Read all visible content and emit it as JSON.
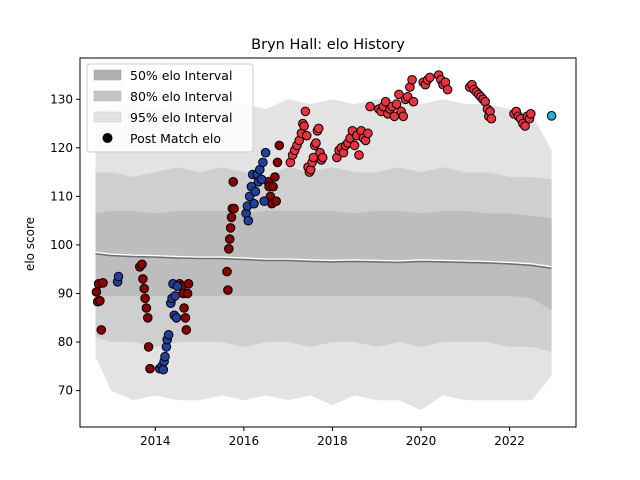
{
  "chart_data": {
    "type": "scatter",
    "title": "Bryn Hall: elo History",
    "xlabel": "",
    "ylabel": "elo score",
    "xlim": [
      2012.3,
      2023.5
    ],
    "ylim": [
      62.5,
      138.5
    ],
    "x_ticks": [
      2014,
      2016,
      2018,
      2020,
      2022
    ],
    "y_ticks": [
      70,
      80,
      90,
      100,
      110,
      120,
      130
    ],
    "legend": {
      "placement": "top-left",
      "entries": [
        "50% elo Interval",
        "80% elo Interval",
        "95% elo Interval",
        "Post Match elo"
      ]
    },
    "bands": {
      "x": [
        2012.65,
        2013.0,
        2013.5,
        2014.0,
        2014.5,
        2015.0,
        2015.5,
        2016.0,
        2016.5,
        2017.0,
        2017.5,
        2018.0,
        2018.5,
        2019.0,
        2019.5,
        2020.0,
        2020.5,
        2021.0,
        2021.5,
        2022.0,
        2022.5,
        2022.95
      ],
      "i95_high": [
        128,
        129,
        129,
        128,
        129,
        129,
        130,
        129,
        128,
        130,
        129,
        130,
        129,
        130,
        130,
        129,
        130,
        129,
        129,
        128,
        127,
        119.5
      ],
      "i95_low": [
        77,
        70,
        68,
        69,
        68,
        68,
        69,
        68,
        69,
        68,
        69,
        67,
        69,
        68,
        68,
        66,
        69,
        68,
        68,
        68,
        68,
        73
      ],
      "i80_high": [
        115,
        115,
        114,
        115,
        116,
        115,
        116,
        115,
        114,
        116,
        115,
        116,
        115,
        115,
        116,
        115,
        116,
        115,
        115,
        114,
        114,
        113.5
      ],
      "i80_low": [
        81,
        80,
        80,
        79,
        80,
        80,
        80,
        79,
        80,
        80,
        79,
        80,
        80,
        79,
        80,
        79,
        80,
        80,
        80,
        79,
        79,
        78
      ],
      "i50_high": [
        106.5,
        107,
        107,
        106.5,
        107,
        107,
        107,
        106.5,
        107,
        107,
        107,
        107,
        106.5,
        107,
        107,
        106.5,
        107,
        107,
        106.5,
        106.5,
        106,
        105.5
      ],
      "i50_low": [
        89.5,
        89.5,
        89.5,
        89.5,
        89.5,
        89.5,
        89.5,
        89.5,
        89.5,
        89.5,
        89.5,
        89.5,
        89.5,
        89.5,
        89.5,
        89.5,
        89.5,
        89.5,
        89.5,
        89.5,
        89,
        86.5
      ],
      "median": [
        98.2,
        97.8,
        97.6,
        97.5,
        97.3,
        97.2,
        97.2,
        97.0,
        96.8,
        96.8,
        96.6,
        96.5,
        96.6,
        96.5,
        96.4,
        96.6,
        96.5,
        96.4,
        96.3,
        96.1,
        95.8,
        95.2
      ]
    },
    "series": [
      {
        "color": "#8b0000",
        "points": [
          [
            2012.67,
            90.3
          ],
          [
            2012.7,
            88.3
          ],
          [
            2012.72,
            92.0
          ],
          [
            2012.75,
            88.5
          ],
          [
            2012.78,
            82.5
          ],
          [
            2012.82,
            92.2
          ],
          [
            2013.65,
            95.5
          ],
          [
            2013.7,
            96.0
          ],
          [
            2013.72,
            93.0
          ],
          [
            2013.75,
            91.0
          ],
          [
            2013.77,
            89.0
          ],
          [
            2013.8,
            87.0
          ],
          [
            2013.83,
            85.0
          ],
          [
            2013.85,
            79.0
          ],
          [
            2013.88,
            74.5
          ],
          [
            2014.55,
            92.0
          ],
          [
            2014.6,
            91.5
          ],
          [
            2014.63,
            90.0
          ],
          [
            2014.65,
            87.0
          ],
          [
            2014.68,
            85.0
          ],
          [
            2014.7,
            82.5
          ],
          [
            2014.73,
            90.0
          ],
          [
            2014.75,
            92.0
          ],
          [
            2015.62,
            94.5
          ],
          [
            2015.64,
            90.7
          ],
          [
            2015.66,
            99.2
          ],
          [
            2015.68,
            101.2
          ],
          [
            2015.7,
            103.5
          ],
          [
            2015.72,
            105.7
          ],
          [
            2015.74,
            107.5
          ],
          [
            2015.76,
            113.0
          ],
          [
            2015.78,
            107.5
          ],
          [
            2016.55,
            113.0
          ],
          [
            2016.57,
            112.0
          ],
          [
            2016.6,
            110.0
          ],
          [
            2016.63,
            108.5
          ],
          [
            2016.66,
            112.0
          ],
          [
            2016.7,
            114.0
          ],
          [
            2016.73,
            109.0
          ],
          [
            2016.76,
            117.0
          ],
          [
            2016.8,
            120.5
          ]
        ]
      },
      {
        "color": "#223f99",
        "points": [
          [
            2013.15,
            92.4
          ],
          [
            2013.17,
            93.5
          ],
          [
            2014.1,
            74.5
          ],
          [
            2014.15,
            75.0
          ],
          [
            2014.18,
            74.3
          ],
          [
            2014.2,
            76.0
          ],
          [
            2014.22,
            77.0
          ],
          [
            2014.25,
            79.0
          ],
          [
            2014.27,
            80.5
          ],
          [
            2014.3,
            81.5
          ],
          [
            2014.35,
            88.0
          ],
          [
            2014.38,
            89.0
          ],
          [
            2014.4,
            92.0
          ],
          [
            2014.43,
            85.5
          ],
          [
            2014.45,
            89.5
          ],
          [
            2014.48,
            85.0
          ],
          [
            2014.5,
            91.5
          ],
          [
            2016.05,
            106.5
          ],
          [
            2016.08,
            108.0
          ],
          [
            2016.1,
            105.0
          ],
          [
            2016.13,
            110.0
          ],
          [
            2016.17,
            112.0
          ],
          [
            2016.2,
            114.5
          ],
          [
            2016.23,
            108.5
          ],
          [
            2016.26,
            111.0
          ],
          [
            2016.3,
            114.5
          ],
          [
            2016.33,
            113.0
          ],
          [
            2016.36,
            115.5
          ],
          [
            2016.4,
            113.5
          ],
          [
            2016.43,
            117.0
          ],
          [
            2016.46,
            109.0
          ],
          [
            2016.49,
            119.0
          ]
        ]
      },
      {
        "color": "#e8323c",
        "points": [
          [
            2017.05,
            117.0
          ],
          [
            2017.1,
            118.5
          ],
          [
            2017.15,
            119.5
          ],
          [
            2017.2,
            120.5
          ],
          [
            2017.25,
            121.5
          ],
          [
            2017.3,
            123.0
          ],
          [
            2017.33,
            125.0
          ],
          [
            2017.36,
            124.5
          ],
          [
            2017.39,
            127.5
          ],
          [
            2017.42,
            122.5
          ],
          [
            2017.45,
            116.0
          ],
          [
            2017.48,
            115.0
          ],
          [
            2017.51,
            115.5
          ],
          [
            2017.54,
            117.0
          ],
          [
            2017.57,
            118.0
          ],
          [
            2017.6,
            120.5
          ],
          [
            2017.63,
            121.0
          ],
          [
            2017.66,
            123.5
          ],
          [
            2017.69,
            124.0
          ],
          [
            2017.72,
            119.0
          ],
          [
            2017.75,
            117.5
          ],
          [
            2017.78,
            118.0
          ],
          [
            2018.1,
            118.0
          ],
          [
            2018.15,
            119.5
          ],
          [
            2018.2,
            120.0
          ],
          [
            2018.25,
            119.0
          ],
          [
            2018.3,
            120.5
          ],
          [
            2018.35,
            121.0
          ],
          [
            2018.4,
            122.0
          ],
          [
            2018.45,
            123.5
          ],
          [
            2018.5,
            120.5
          ],
          [
            2018.55,
            122.5
          ],
          [
            2018.6,
            118.5
          ],
          [
            2018.65,
            123.5
          ],
          [
            2018.7,
            122.0
          ],
          [
            2018.75,
            121.5
          ],
          [
            2018.8,
            123.0
          ],
          [
            2018.85,
            128.5
          ],
          [
            2019.05,
            128.0
          ],
          [
            2019.1,
            127.5
          ],
          [
            2019.15,
            128.5
          ],
          [
            2019.2,
            129.5
          ],
          [
            2019.25,
            127.0
          ],
          [
            2019.3,
            128.0
          ],
          [
            2019.35,
            128.5
          ],
          [
            2019.4,
            126.5
          ],
          [
            2019.45,
            129.0
          ],
          [
            2019.5,
            131.0
          ],
          [
            2019.55,
            127.5
          ],
          [
            2019.6,
            126.5
          ],
          [
            2019.65,
            130.0
          ],
          [
            2019.7,
            130.5
          ],
          [
            2019.75,
            132.5
          ],
          [
            2019.8,
            134.0
          ],
          [
            2019.83,
            129.5
          ],
          [
            2020.05,
            133.5
          ],
          [
            2020.1,
            133.0
          ],
          [
            2020.15,
            134.0
          ],
          [
            2020.2,
            134.5
          ],
          [
            2020.4,
            135.0
          ],
          [
            2020.45,
            134.0
          ],
          [
            2020.5,
            133.0
          ],
          [
            2020.55,
            133.5
          ],
          [
            2020.6,
            132.0
          ],
          [
            2021.1,
            132.5
          ],
          [
            2021.15,
            133.0
          ],
          [
            2021.2,
            132.0
          ],
          [
            2021.25,
            131.5
          ],
          [
            2021.3,
            131.0
          ],
          [
            2021.35,
            130.5
          ],
          [
            2021.4,
            130.0
          ],
          [
            2021.45,
            129.5
          ],
          [
            2021.5,
            128.0
          ],
          [
            2021.53,
            126.5
          ],
          [
            2021.56,
            127.5
          ],
          [
            2021.59,
            126.0
          ],
          [
            2022.1,
            127.0
          ],
          [
            2022.15,
            127.5
          ],
          [
            2022.2,
            126.5
          ],
          [
            2022.25,
            126.0
          ],
          [
            2022.3,
            125.0
          ],
          [
            2022.35,
            124.5
          ],
          [
            2022.4,
            126.5
          ],
          [
            2022.45,
            126.0
          ],
          [
            2022.48,
            127.0
          ]
        ]
      },
      {
        "color": "#1fb2d8",
        "points": [
          [
            2022.95,
            126.6
          ]
        ]
      }
    ]
  }
}
